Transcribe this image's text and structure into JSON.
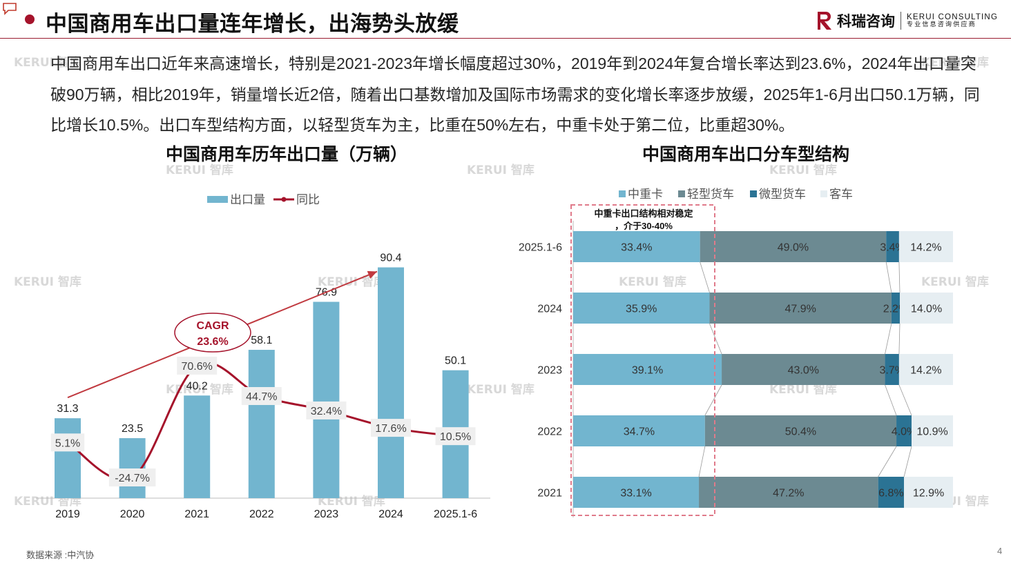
{
  "header": {
    "title": "中国商用车出口量连年增长，出海势头放缓",
    "logo_cn": "科瑞咨询",
    "logo_en": "KERUI CONSULTING",
    "logo_tagline": "专业信息咨询供应商",
    "brand_color": "#a5132b"
  },
  "intro_text": "中国商用车出口近年来高速增长，特别是2021-2023年增长幅度超过30%，2019年到2024年复合增长率达到23.6%，2024年出口量突破90万辆，相比2019年，销量增长近2倍，随着出口基数增加及国际市场需求的变化增长率逐步放缓，2025年1-6月出口50.1万辆，同比增长10.5%。出口车型结构方面，以轻型货车为主，比重在50%左右，中重卡处于第二位，比重超30%。",
  "watermark": "KERUI 智库",
  "footer": {
    "source": "数据来源 :中汽协",
    "page_number": "4"
  },
  "chart_data": [
    {
      "type": "bar",
      "title": "中国商用车历年出口量（万辆）",
      "categories": [
        "2019",
        "2020",
        "2021",
        "2022",
        "2023",
        "2024",
        "2025.1-6"
      ],
      "series": [
        {
          "name": "出口量",
          "type": "bar",
          "values": [
            31.3,
            23.5,
            40.2,
            58.1,
            76.9,
            90.4,
            50.1
          ],
          "color": "#72b5cf"
        },
        {
          "name": "同比",
          "type": "line",
          "values": [
            5.1,
            -24.7,
            70.6,
            44.7,
            32.4,
            17.6,
            10.5
          ],
          "labels": [
            "5.1%",
            "-24.7%",
            "70.6%",
            "44.7%",
            "32.4%",
            "17.6%",
            "10.5%"
          ],
          "color": "#a5132b"
        }
      ],
      "legend": "top",
      "annotation": {
        "label": "CAGR",
        "value": "23.6%"
      },
      "grid": false
    },
    {
      "type": "bar",
      "orientation": "horizontal",
      "stacked": "percent",
      "title": "中国商用车出口分车型结构",
      "categories": [
        "2025.1-6",
        "2024",
        "2023",
        "2022",
        "2021"
      ],
      "series": [
        {
          "name": "中重卡",
          "values": [
            33.4,
            35.9,
            39.1,
            34.7,
            33.1
          ],
          "color": "#72b5cf"
        },
        {
          "name": "轻型货车",
          "values": [
            49.0,
            47.9,
            43.0,
            50.4,
            47.2
          ],
          "color": "#6c8a92"
        },
        {
          "name": "微型货车",
          "values": [
            3.4,
            2.2,
            3.7,
            4.0,
            6.8
          ],
          "color": "#2b7394"
        },
        {
          "name": "客车",
          "values": [
            14.2,
            14.0,
            14.2,
            10.9,
            12.9
          ],
          "color": "#e6eef2"
        }
      ],
      "legend": "top",
      "annotation": "中重卡出口结构相对稳定，介于30-40%",
      "grid": false
    }
  ]
}
